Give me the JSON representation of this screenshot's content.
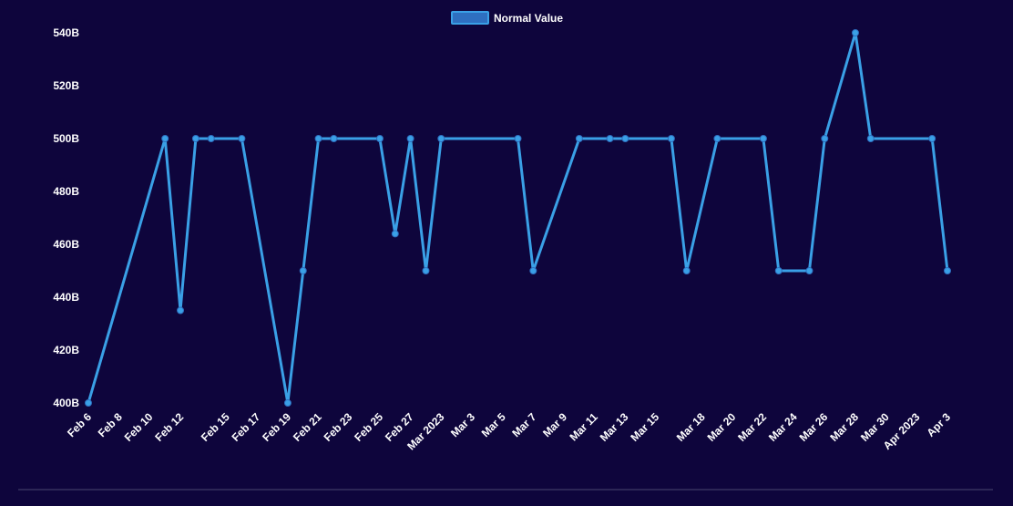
{
  "colors": {
    "background": "#0e053c",
    "line": "#3aa0e6",
    "legend_fill": "#2e6fc0",
    "text": "#ffffff",
    "divider": "#4b4670"
  },
  "chart_data": {
    "type": "line",
    "legend": {
      "position": "top-center",
      "label": "Normal Value"
    },
    "ylim": [
      400,
      540
    ],
    "y_unit_suffix": "B",
    "y_ticks": [
      "400B",
      "420B",
      "440B",
      "460B",
      "480B",
      "500B",
      "520B",
      "540B"
    ],
    "x_ticks": [
      "Feb 6",
      "Feb 8",
      "Feb 10",
      "Feb 12",
      "Feb 15",
      "Feb 17",
      "Feb 19",
      "Feb 21",
      "Feb 23",
      "Feb 25",
      "Feb 27",
      "Mar 2023",
      "Mar 3",
      "Mar 5",
      "Mar 7",
      "Mar 9",
      "Mar 11",
      "Mar 13",
      "Mar 15",
      "Mar 18",
      "Mar 20",
      "Mar 22",
      "Mar 24",
      "Mar 26",
      "Mar 28",
      "Mar 30",
      "Apr 2023",
      "Apr 3"
    ],
    "series": [
      {
        "name": "Normal Value",
        "points": [
          {
            "x": "2023-02-06",
            "y": 400
          },
          {
            "x": "2023-02-11",
            "y": 500
          },
          {
            "x": "2023-02-12",
            "y": 435
          },
          {
            "x": "2023-02-13",
            "y": 500
          },
          {
            "x": "2023-02-14",
            "y": 500
          },
          {
            "x": "2023-02-16",
            "y": 500
          },
          {
            "x": "2023-02-19",
            "y": 400
          },
          {
            "x": "2023-02-20",
            "y": 450
          },
          {
            "x": "2023-02-21",
            "y": 500
          },
          {
            "x": "2023-02-22",
            "y": 500
          },
          {
            "x": "2023-02-25",
            "y": 500
          },
          {
            "x": "2023-02-26",
            "y": 464
          },
          {
            "x": "2023-02-27",
            "y": 500
          },
          {
            "x": "2023-02-28",
            "y": 450
          },
          {
            "x": "2023-03-01",
            "y": 500
          },
          {
            "x": "2023-03-06",
            "y": 500
          },
          {
            "x": "2023-03-07",
            "y": 450
          },
          {
            "x": "2023-03-10",
            "y": 500
          },
          {
            "x": "2023-03-12",
            "y": 500
          },
          {
            "x": "2023-03-13",
            "y": 500
          },
          {
            "x": "2023-03-16",
            "y": 500
          },
          {
            "x": "2023-03-17",
            "y": 450
          },
          {
            "x": "2023-03-19",
            "y": 500
          },
          {
            "x": "2023-03-22",
            "y": 500
          },
          {
            "x": "2023-03-23",
            "y": 450
          },
          {
            "x": "2023-03-25",
            "y": 450
          },
          {
            "x": "2023-03-26",
            "y": 500
          },
          {
            "x": "2023-03-28",
            "y": 540
          },
          {
            "x": "2023-03-29",
            "y": 500
          },
          {
            "x": "2023-04-02",
            "y": 500
          },
          {
            "x": "2023-04-03",
            "y": 450
          }
        ]
      }
    ]
  }
}
